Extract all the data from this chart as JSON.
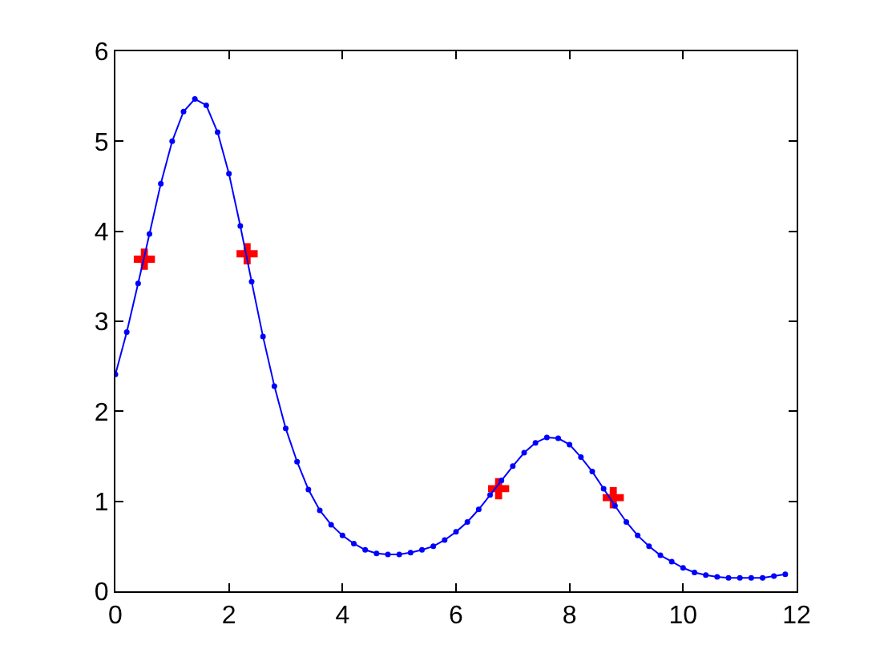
{
  "chart_data": {
    "type": "line",
    "xlim": [
      0,
      12
    ],
    "ylim": [
      0,
      6
    ],
    "xticks": [
      0,
      2,
      4,
      6,
      8,
      10,
      12
    ],
    "yticks": [
      0,
      1,
      2,
      3,
      4,
      5,
      6
    ],
    "series": [
      {
        "color": "#0000ff",
        "marker": "circle",
        "line_style": "solid",
        "x": [
          0,
          0.2,
          0.4,
          0.6,
          0.8,
          1.0,
          1.2,
          1.4,
          1.6,
          1.8,
          2.0,
          2.2,
          2.4,
          2.6,
          2.8,
          3.0,
          3.2,
          3.4,
          3.6,
          3.8,
          4.0,
          4.2,
          4.4,
          4.6,
          4.8,
          5.0,
          5.2,
          5.4,
          5.6,
          5.8,
          6.0,
          6.2,
          6.4,
          6.6,
          6.8,
          7.0,
          7.2,
          7.4,
          7.6,
          7.8,
          8.0,
          8.2,
          8.4,
          8.6,
          8.8,
          9.0,
          9.2,
          9.4,
          9.6,
          9.8,
          10.0,
          10.2,
          10.4,
          10.6,
          10.8,
          11.0,
          11.2,
          11.4,
          11.6,
          11.8
        ],
        "values": [
          2.41,
          2.88,
          3.42,
          3.97,
          4.53,
          5.0,
          5.33,
          5.47,
          5.4,
          5.1,
          4.64,
          4.06,
          3.44,
          2.83,
          2.28,
          1.81,
          1.44,
          1.13,
          0.9,
          0.74,
          0.62,
          0.53,
          0.46,
          0.42,
          0.41,
          0.41,
          0.43,
          0.46,
          0.5,
          0.57,
          0.66,
          0.77,
          0.91,
          1.07,
          1.23,
          1.39,
          1.54,
          1.65,
          1.71,
          1.7,
          1.63,
          1.49,
          1.33,
          1.14,
          0.95,
          0.77,
          0.62,
          0.5,
          0.4,
          0.33,
          0.26,
          0.21,
          0.18,
          0.16,
          0.15,
          0.15,
          0.15,
          0.15,
          0.17,
          0.19
        ]
      },
      {
        "type": "scatter",
        "color": "#ff0000",
        "marker": "cross",
        "x": [
          0.51,
          2.32,
          6.75,
          8.77
        ],
        "values": [
          3.69,
          3.75,
          1.14,
          1.04
        ]
      }
    ]
  }
}
